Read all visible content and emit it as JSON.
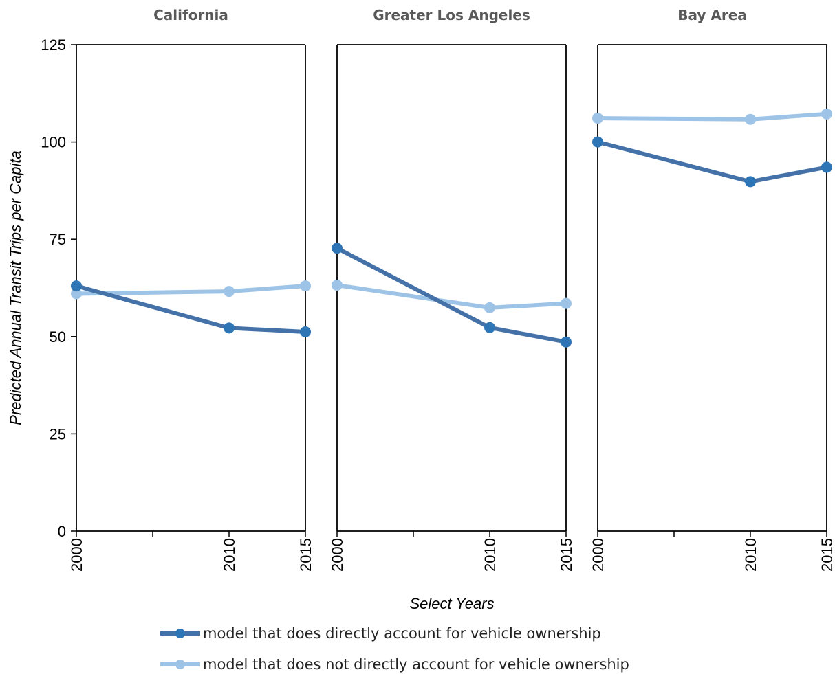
{
  "chart_data": {
    "type": "line",
    "ylabel": "Predicted Annual Transit Trips per Capita",
    "xlabel": "Select Years",
    "ylim": [
      0,
      125
    ],
    "yticks": [
      0,
      25,
      50,
      75,
      100,
      125
    ],
    "xlim": [
      2000,
      2015
    ],
    "xticks": [
      2000,
      2010,
      2015
    ],
    "grid": false,
    "legend_position": "bottom",
    "panels": [
      {
        "title": "California",
        "series": [
          {
            "name": "model that does directly account for vehicle ownership",
            "x": [
              2000,
              2010,
              2015
            ],
            "y": [
              63,
              52.2,
              51.2
            ]
          },
          {
            "name": "model that does not directly account for vehicle ownership",
            "x": [
              2000,
              2010,
              2015
            ],
            "y": [
              61,
              61.6,
              63
            ]
          }
        ]
      },
      {
        "title": "Greater Los Angeles",
        "series": [
          {
            "name": "model that does directly account for vehicle ownership",
            "x": [
              2000,
              2010,
              2015
            ],
            "y": [
              72.7,
              52.3,
              48.6
            ]
          },
          {
            "name": "model that does not directly account for vehicle ownership",
            "x": [
              2000,
              2010,
              2015
            ],
            "y": [
              63.2,
              57.4,
              58.5
            ]
          }
        ]
      },
      {
        "title": "Bay Area",
        "series": [
          {
            "name": "model that does directly account for vehicle ownership",
            "x": [
              2000,
              2010,
              2015
            ],
            "y": [
              100,
              89.8,
              93.5
            ]
          },
          {
            "name": "model that does not directly account for vehicle ownership",
            "x": [
              2000,
              2010,
              2015
            ],
            "y": [
              106.1,
              105.8,
              107.2
            ]
          }
        ]
      }
    ],
    "legend": [
      {
        "label": "model that does directly account for vehicle ownership",
        "line_color": "#4472A8",
        "marker_color": "#2E75B6"
      },
      {
        "label": "model that does not directly account for vehicle ownership",
        "line_color": "#9DC3E6",
        "marker_color": "#9DC3E6"
      }
    ]
  }
}
